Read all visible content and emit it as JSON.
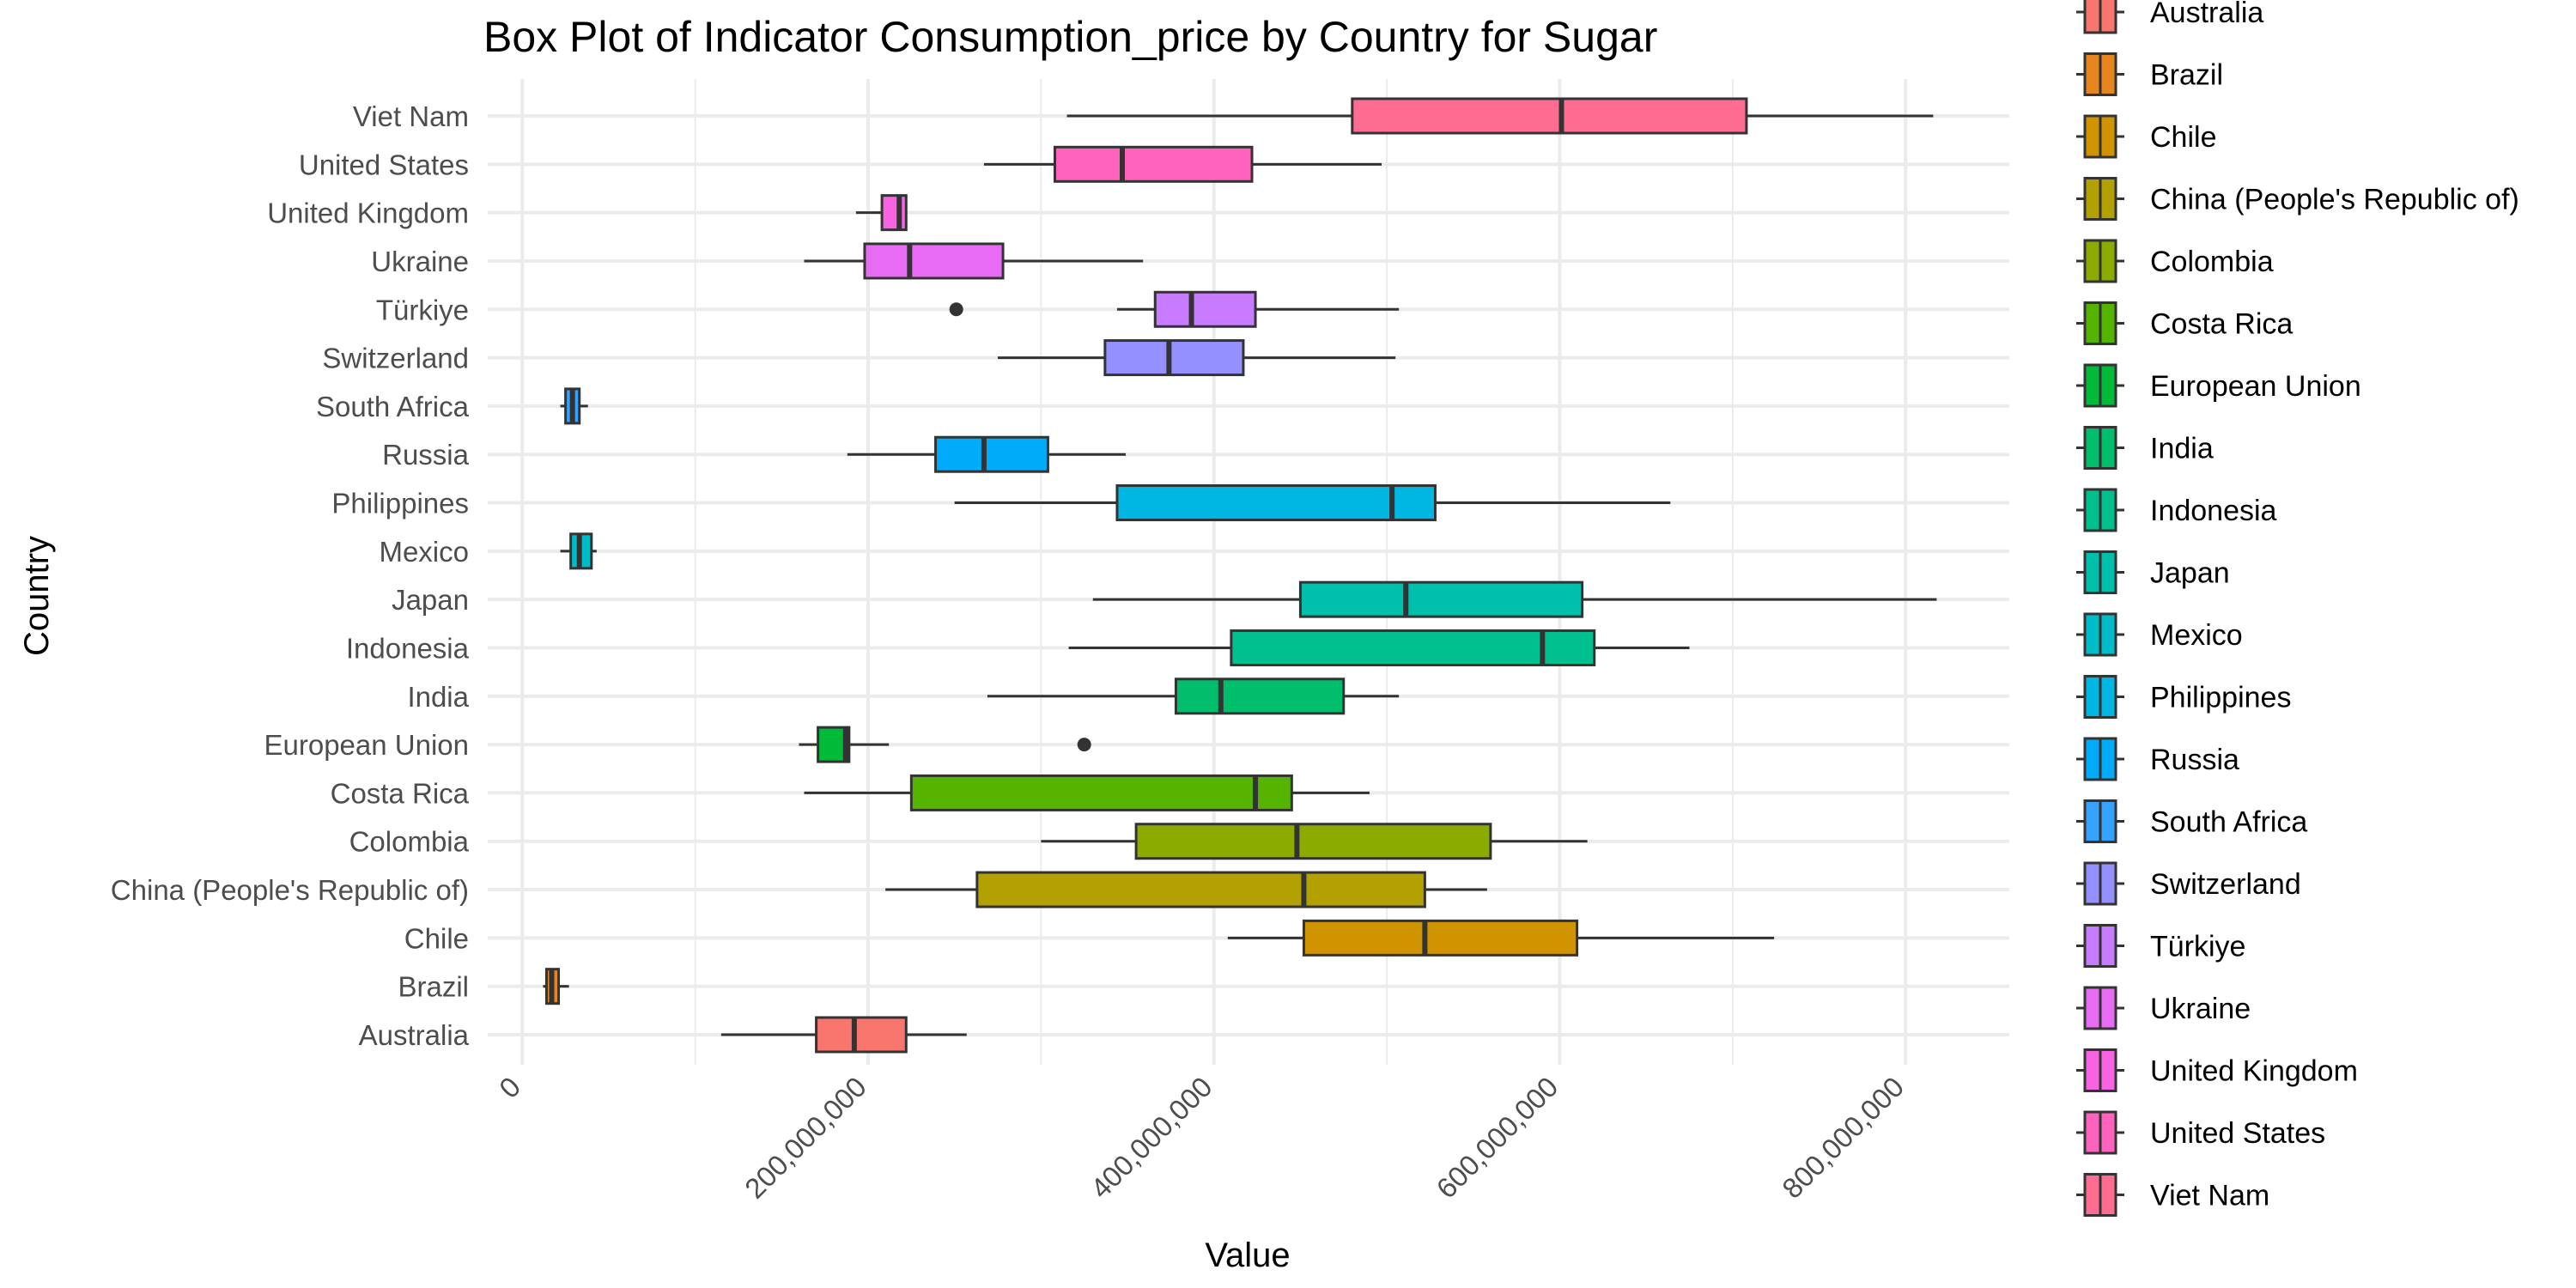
{
  "chart_data": {
    "type": "boxplot",
    "title": "Box Plot of Indicator Consumption_price by Country for Sugar",
    "xlabel": "Value",
    "ylabel": "Country",
    "xlim": [
      -20000000,
      860000000
    ],
    "x_ticks": [
      {
        "value": 0,
        "label": "0"
      },
      {
        "value": 200000000,
        "label": "200,000,000"
      },
      {
        "value": 400000000,
        "label": "400,000,000"
      },
      {
        "value": 600000000,
        "label": "600,000,000"
      },
      {
        "value": 800000000,
        "label": "800,000,000"
      }
    ],
    "grid": true,
    "legend_position": "right",
    "series": [
      {
        "name": "Australia",
        "color": "#F8766D",
        "whisker_low": 115000000,
        "q1": 170000000,
        "median": 192000000,
        "q3": 222000000,
        "whisker_high": 257000000,
        "outliers": []
      },
      {
        "name": "Brazil",
        "color": "#E7851E",
        "whisker_low": 12000000,
        "q1": 14000000,
        "median": 17000000,
        "q3": 21000000,
        "whisker_high": 27000000,
        "outliers": []
      },
      {
        "name": "Chile",
        "color": "#D09400",
        "whisker_low": 408000000,
        "q1": 452000000,
        "median": 522000000,
        "q3": 610000000,
        "whisker_high": 724000000,
        "outliers": []
      },
      {
        "name": "China (People's Republic of)",
        "color": "#B2A100",
        "whisker_low": 210000000,
        "q1": 263000000,
        "median": 452000000,
        "q3": 522000000,
        "whisker_high": 558000000,
        "outliers": []
      },
      {
        "name": "Colombia",
        "color": "#8BAB00",
        "whisker_low": 300000000,
        "q1": 355000000,
        "median": 448000000,
        "q3": 560000000,
        "whisker_high": 616000000,
        "outliers": []
      },
      {
        "name": "Costa Rica",
        "color": "#55B400",
        "whisker_low": 163000000,
        "q1": 225000000,
        "median": 424000000,
        "q3": 445000000,
        "whisker_high": 490000000,
        "outliers": []
      },
      {
        "name": "European Union",
        "color": "#00BA38",
        "whisker_low": 160000000,
        "q1": 171000000,
        "median": 187000000,
        "q3": 189000000,
        "whisker_high": 212000000,
        "outliers": [
          325000000
        ]
      },
      {
        "name": "India",
        "color": "#00BE6C",
        "whisker_low": 269000000,
        "q1": 378000000,
        "median": 404000000,
        "q3": 475000000,
        "whisker_high": 507000000,
        "outliers": []
      },
      {
        "name": "Indonesia",
        "color": "#00C08E",
        "whisker_low": 316000000,
        "q1": 410000000,
        "median": 590000000,
        "q3": 620000000,
        "whisker_high": 675000000,
        "outliers": []
      },
      {
        "name": "Japan",
        "color": "#00C0AC",
        "whisker_low": 330000000,
        "q1": 450000000,
        "median": 511000000,
        "q3": 613000000,
        "whisker_high": 818000000,
        "outliers": []
      },
      {
        "name": "Mexico",
        "color": "#00BCC8",
        "whisker_low": 22000000,
        "q1": 28000000,
        "median": 33000000,
        "q3": 40000000,
        "whisker_high": 43000000,
        "outliers": []
      },
      {
        "name": "Philippines",
        "color": "#00B6E2",
        "whisker_low": 250000000,
        "q1": 344000000,
        "median": 503000000,
        "q3": 528000000,
        "whisker_high": 664000000,
        "outliers": []
      },
      {
        "name": "Russia",
        "color": "#00ABFA",
        "whisker_low": 188000000,
        "q1": 239000000,
        "median": 267000000,
        "q3": 304000000,
        "whisker_high": 349000000,
        "outliers": []
      },
      {
        "name": "South Africa",
        "color": "#35A2FF",
        "whisker_low": 22000000,
        "q1": 25000000,
        "median": 29000000,
        "q3": 33000000,
        "whisker_high": 38000000,
        "outliers": []
      },
      {
        "name": "Switzerland",
        "color": "#9590FF",
        "whisker_low": 275000000,
        "q1": 337000000,
        "median": 374000000,
        "q3": 417000000,
        "whisker_high": 505000000,
        "outliers": []
      },
      {
        "name": "Türkiye",
        "color": "#C77CFF",
        "whisker_low": 344000000,
        "q1": 366000000,
        "median": 387000000,
        "q3": 424000000,
        "whisker_high": 507000000,
        "outliers": [
          251000000
        ]
      },
      {
        "name": "Ukraine",
        "color": "#E76BF3",
        "whisker_low": 163000000,
        "q1": 198000000,
        "median": 224000000,
        "q3": 278000000,
        "whisker_high": 359000000,
        "outliers": []
      },
      {
        "name": "United Kingdom",
        "color": "#F763E0",
        "whisker_low": 193000000,
        "q1": 208000000,
        "median": 218000000,
        "q3": 222000000,
        "whisker_high": 222000000,
        "outliers": []
      },
      {
        "name": "United States",
        "color": "#FF62BC",
        "whisker_low": 267000000,
        "q1": 308000000,
        "median": 347000000,
        "q3": 422000000,
        "whisker_high": 497000000,
        "outliers": []
      },
      {
        "name": "Viet Nam",
        "color": "#FF6C91",
        "whisker_low": 315000000,
        "q1": 480000000,
        "median": 601000000,
        "q3": 708000000,
        "whisker_high": 816000000,
        "outliers": []
      }
    ]
  }
}
